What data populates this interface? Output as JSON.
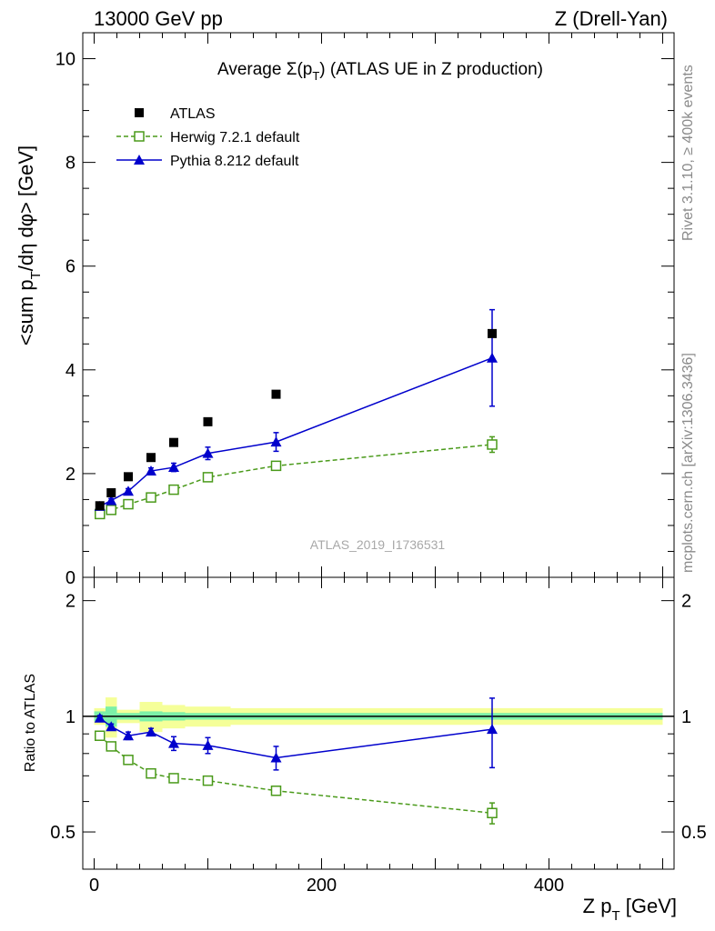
{
  "header": {
    "left": "13000 GeV pp",
    "right": "Z (Drell-Yan)"
  },
  "side_text": {
    "rivet": "Rivet 3.1.10, ≥ 400k events",
    "mcplots": "mcplots.cern.ch [arXiv:1306.3436]"
  },
  "watermark": "ATLAS_2019_I1736531",
  "colors": {
    "atlas": "#000000",
    "herwig": "#4a9a1a",
    "pythia": "#0000cc",
    "band_inner": "#7cf0a8",
    "band_outer": "#f5ff99"
  },
  "chart_data": [
    {
      "type": "scatter",
      "panel": "main",
      "title": "Average Σ(p_T) (ATLAS UE in Z production)",
      "title_parts": {
        "prefix": "Average ",
        "sigma": "Σ(p",
        "sub": "T",
        "suffix": ") (ATLAS UE in Z production)"
      },
      "ylabel": "<sum p_T/dη dφ> [GeV]",
      "ylabel_parts": {
        "prefix": "<sum p",
        "sub": "T",
        "suffix": "/dη dφ> [GeV]"
      },
      "xlim": [
        -10,
        510
      ],
      "ylim": [
        0,
        10.5
      ],
      "y_ticks": [
        "0",
        "2",
        "4",
        "6",
        "8",
        "10"
      ],
      "legend_position": "top-left",
      "series": [
        {
          "name": "ATLAS",
          "marker": "filled-square",
          "x": [
            5,
            15,
            30,
            50,
            70,
            100,
            160,
            350
          ],
          "y": [
            1.38,
            1.63,
            1.94,
            2.31,
            2.6,
            3.0,
            3.53,
            4.7
          ]
        },
        {
          "name": "Herwig 7.2.1 default",
          "marker": "open-square",
          "line": "dashed",
          "x": [
            5,
            15,
            30,
            50,
            70,
            100,
            160,
            350
          ],
          "y": [
            1.22,
            1.3,
            1.41,
            1.54,
            1.69,
            1.93,
            2.15,
            2.56
          ],
          "yerr": [
            0.03,
            0.03,
            0.03,
            0.04,
            0.05,
            0.05,
            0.06,
            0.15
          ]
        },
        {
          "name": "Pythia 8.212 default",
          "marker": "filled-triangle",
          "line": "solid",
          "x": [
            5,
            15,
            30,
            50,
            70,
            100,
            160,
            350
          ],
          "y": [
            1.37,
            1.48,
            1.66,
            2.05,
            2.12,
            2.39,
            2.61,
            4.23
          ],
          "yerr": [
            0.03,
            0.04,
            0.05,
            0.06,
            0.08,
            0.12,
            0.18,
            0.93
          ]
        }
      ]
    },
    {
      "type": "scatter",
      "panel": "ratio",
      "ylabel": "Ratio to ATLAS",
      "xlabel": "Z p_T [GeV]",
      "xlabel_parts": {
        "prefix": "Z p",
        "sub": "T",
        "suffix": " [GeV]"
      },
      "xlim": [
        -10,
        510
      ],
      "ylim": [
        0.4,
        2.3
      ],
      "log_y": true,
      "x_ticks": [
        "0",
        "200",
        "400"
      ],
      "y_ticks": [
        "0.5",
        "1",
        "2"
      ],
      "reference_line": 1,
      "bands": [
        {
          "x0": 0,
          "x1": 10,
          "inner": 0.03,
          "outer": 0.05
        },
        {
          "x0": 10,
          "x1": 20,
          "inner": 0.06,
          "outer": 0.12
        },
        {
          "x0": 20,
          "x1": 40,
          "inner": 0.02,
          "outer": 0.04
        },
        {
          "x0": 40,
          "x1": 60,
          "inner": 0.03,
          "outer": 0.09
        },
        {
          "x0": 60,
          "x1": 80,
          "inner": 0.025,
          "outer": 0.07
        },
        {
          "x0": 80,
          "x1": 120,
          "inner": 0.02,
          "outer": 0.06
        },
        {
          "x0": 120,
          "x1": 200,
          "inner": 0.02,
          "outer": 0.05
        },
        {
          "x0": 200,
          "x1": 500,
          "inner": 0.02,
          "outer": 0.05
        }
      ],
      "series": [
        {
          "name": "Herwig 7.2.1 default",
          "marker": "open-square",
          "line": "dashed",
          "x": [
            5,
            15,
            30,
            50,
            70,
            100,
            160,
            350
          ],
          "y": [
            0.89,
            0.835,
            0.77,
            0.71,
            0.69,
            0.68,
            0.64,
            0.56
          ],
          "yerr": [
            0.01,
            0.01,
            0.01,
            0.01,
            0.015,
            0.015,
            0.015,
            0.035
          ]
        },
        {
          "name": "Pythia 8.212 default",
          "marker": "filled-triangle",
          "line": "solid",
          "x": [
            5,
            15,
            30,
            50,
            70,
            100,
            160,
            350
          ],
          "y": [
            0.99,
            0.94,
            0.89,
            0.91,
            0.85,
            0.84,
            0.78,
            0.925
          ],
          "yerr": [
            0.015,
            0.015,
            0.02,
            0.02,
            0.035,
            0.04,
            0.055,
            0.19
          ]
        }
      ]
    }
  ]
}
